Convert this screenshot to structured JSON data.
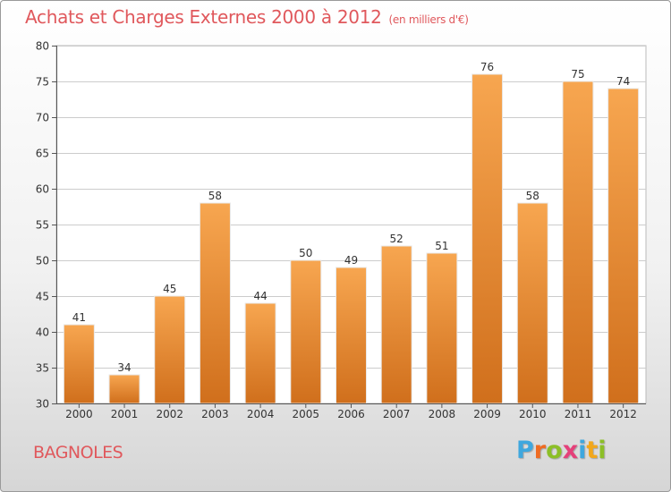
{
  "header": {
    "title": "Achats et Charges Externes 2000 à 2012",
    "unit": "(en milliers d'€)"
  },
  "footer": {
    "city": "BAGNOLES",
    "logo": "Proxiti",
    "logo_colors": [
      "#3fa7de",
      "#ef6b22",
      "#8cbf27",
      "#e5407a",
      "#3fa7de",
      "#f2a71b",
      "#8cbf27"
    ]
  },
  "colors": {
    "title": "#e0585c",
    "bar_top": "#f7a650",
    "bar_bottom": "#d06f1c",
    "grid": "#cccccc"
  },
  "chart_data": {
    "type": "bar",
    "title": "Achats et Charges Externes 2000 à 2012",
    "subtitle": "(en milliers d'€)",
    "categories": [
      "2000",
      "2001",
      "2002",
      "2003",
      "2004",
      "2005",
      "2006",
      "2007",
      "2008",
      "2009",
      "2010",
      "2011",
      "2012"
    ],
    "values": [
      41,
      34,
      45,
      58,
      44,
      50,
      49,
      52,
      51,
      76,
      58,
      75,
      74
    ],
    "ylim": [
      30,
      80
    ],
    "yticks": [
      30,
      35,
      40,
      45,
      50,
      55,
      60,
      65,
      70,
      75,
      80
    ],
    "grid": true,
    "xlabel": "",
    "ylabel": ""
  }
}
